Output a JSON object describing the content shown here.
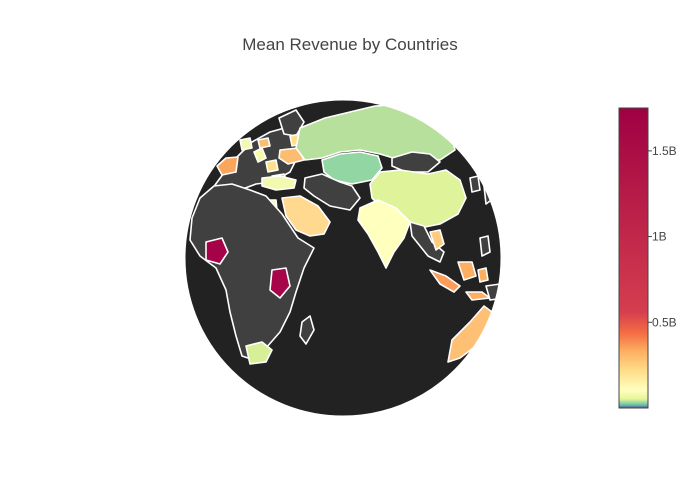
{
  "title": "Mean Revenue by Countries",
  "colorbar": {
    "ticks": [
      {
        "label": "0.5B",
        "value": 500000000
      },
      {
        "label": "1B",
        "value": 1000000000
      },
      {
        "label": "1.5B",
        "value": 1500000000
      }
    ],
    "range": [
      0,
      1750000000
    ],
    "colorscale": [
      "#5e4fa2",
      "#66c2a5",
      "#abdda4",
      "#e6f598",
      "#ffffbf",
      "#fee08b",
      "#fdae61",
      "#f46d43",
      "#d53e4f",
      "#9e0142"
    ]
  },
  "colors": {
    "ocean": "#222222",
    "no_data_land": "#404040",
    "border": "#ffffff"
  },
  "regions": [
    {
      "name": "Russia",
      "color": "#b7e09c"
    },
    {
      "name": "Kazakhstan",
      "color": "#91d6a3"
    },
    {
      "name": "China",
      "color": "#def39a"
    },
    {
      "name": "India",
      "color": "#ffffbe"
    },
    {
      "name": "Saudi Arabia",
      "color": "#fed98f"
    },
    {
      "name": "Egypt",
      "color": "#f6fbaa"
    },
    {
      "name": "Turkey",
      "color": "#f3f9b0"
    },
    {
      "name": "Ukraine",
      "color": "#fdbd70"
    },
    {
      "name": "Nigeria",
      "color": "#a5024a"
    },
    {
      "name": "Kenya",
      "color": "#a6054a"
    },
    {
      "name": "South Africa",
      "color": "#d7ef96"
    },
    {
      "name": "Australia",
      "color": "#fdc074"
    },
    {
      "name": "Indonesia",
      "color": "#fc9e59"
    },
    {
      "name": "Thailand",
      "color": "#fecc7c"
    },
    {
      "name": "Spain",
      "color": "#fca55d"
    }
  ]
}
